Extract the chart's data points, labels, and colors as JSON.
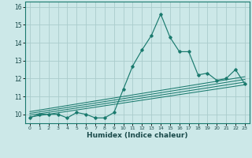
{
  "x": [
    0,
    1,
    2,
    3,
    4,
    5,
    6,
    7,
    8,
    9,
    10,
    11,
    12,
    13,
    14,
    15,
    16,
    17,
    18,
    19,
    20,
    21,
    22,
    23
  ],
  "main_y": [
    9.8,
    10.0,
    10.0,
    10.0,
    9.8,
    10.1,
    10.0,
    9.8,
    9.8,
    10.1,
    11.4,
    12.7,
    13.6,
    14.4,
    15.6,
    14.3,
    13.5,
    13.5,
    12.2,
    12.3,
    11.9,
    12.0,
    12.5,
    11.7
  ],
  "line_color": "#1a7a6e",
  "bg_color": "#cce8e8",
  "grid_color": "#aacccc",
  "xlabel": "Humidex (Indice chaleur)",
  "yticks": [
    10,
    11,
    12,
    13,
    14,
    15,
    16
  ],
  "xticks": [
    0,
    1,
    2,
    3,
    4,
    5,
    6,
    7,
    8,
    9,
    10,
    11,
    12,
    13,
    14,
    15,
    16,
    17,
    18,
    19,
    20,
    21,
    22,
    23
  ],
  "xlim": [
    -0.5,
    23.5
  ],
  "ylim": [
    9.5,
    16.3
  ],
  "trend_lines": [
    {
      "x0": 0,
      "y0": 9.85,
      "x1": 23,
      "y1": 11.65
    },
    {
      "x0": 0,
      "y0": 9.95,
      "x1": 23,
      "y1": 11.8
    },
    {
      "x0": 0,
      "y0": 10.05,
      "x1": 23,
      "y1": 11.95
    },
    {
      "x0": 0,
      "y0": 10.15,
      "x1": 23,
      "y1": 12.1
    }
  ]
}
